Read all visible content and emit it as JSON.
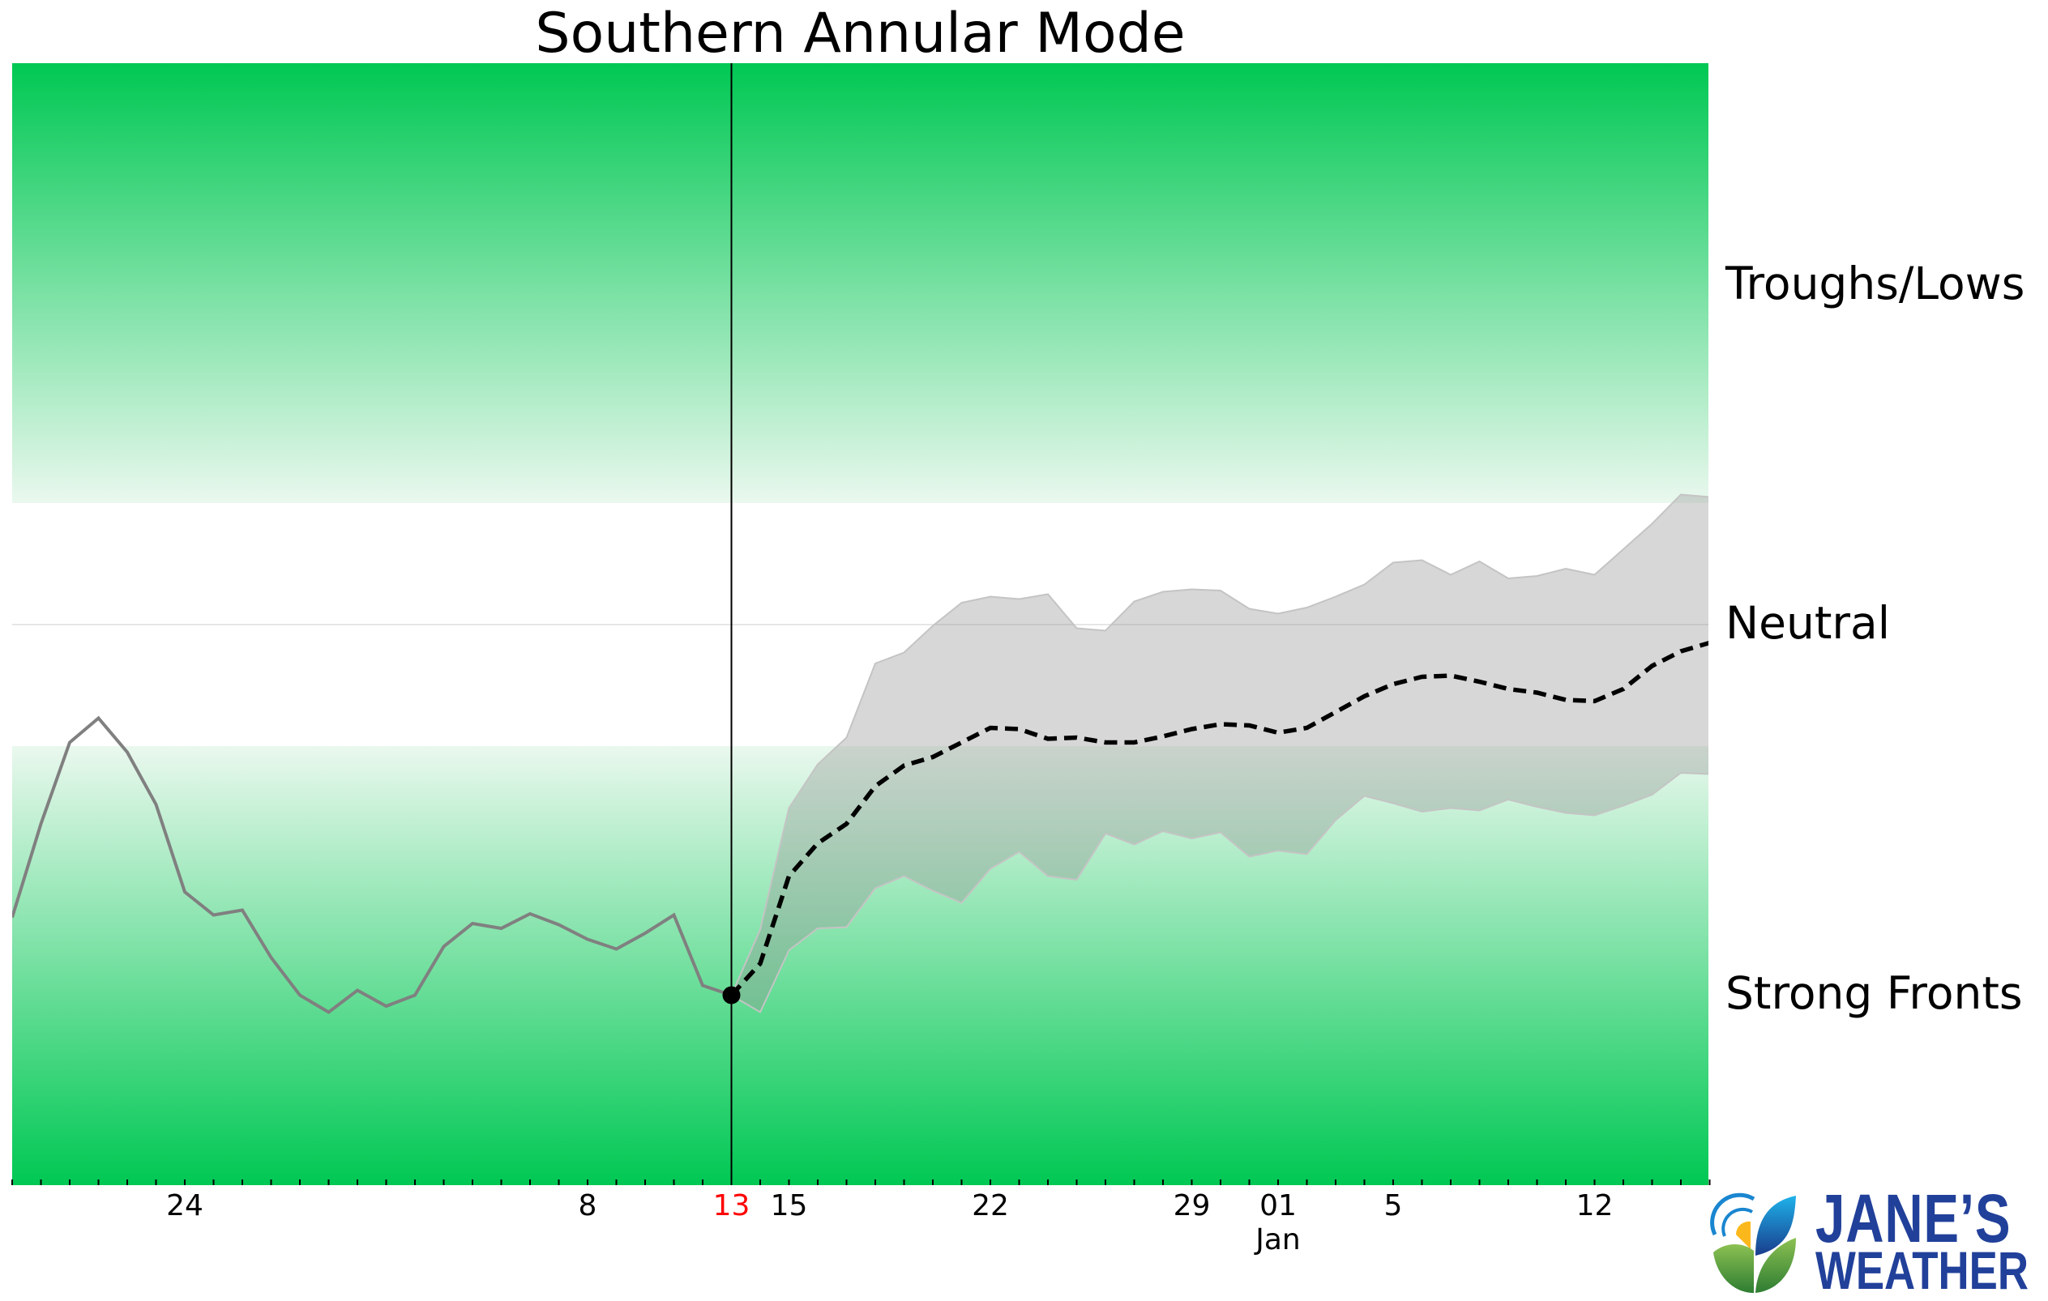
{
  "title": "Southern Annular Mode",
  "colors": {
    "green_strong": "#00c853",
    "green_pale": "#eaf8ee",
    "band_fill": "rgba(150,150,150,0.38)",
    "band_edge": "#c4c4c4",
    "history_line": "#808080",
    "forecast_line": "#000000",
    "today_marker": "#000000",
    "today_label": "#ff0000",
    "neutral_line": "#e6e6e6",
    "logo_blue": "#21409a"
  },
  "region_labels": {
    "upper": "Troughs/Lows",
    "middle": "Neutral",
    "lower": "Strong Fronts"
  },
  "logo": {
    "line1": "JANE’S",
    "line2": "WEATHER"
  },
  "x_ticks": [
    {
      "day": 6,
      "label": "24",
      "color": "#000000"
    },
    {
      "day": 20,
      "label": "8",
      "color": "#000000"
    },
    {
      "day": 25,
      "label": "13",
      "color": "#ff0000"
    },
    {
      "day": 27,
      "label": "15",
      "color": "#000000"
    },
    {
      "day": 34,
      "label": "22",
      "color": "#000000"
    },
    {
      "day": 41,
      "label": "29",
      "color": "#000000"
    },
    {
      "day": 44,
      "label": "01",
      "sublabel": "Jan",
      "color": "#000000"
    },
    {
      "day": 48,
      "label": "5",
      "color": "#000000"
    },
    {
      "day": 55,
      "label": "12",
      "color": "#000000"
    }
  ],
  "chart_data": {
    "type": "line",
    "title": "Southern Annular Mode",
    "xlabel": "",
    "ylabel": "",
    "x_axis": {
      "start": "Nov 18",
      "end": "Jan 16",
      "n_days": 60,
      "minor_tick_every_days": 1
    },
    "ylim": [
      -4.6,
      4.6
    ],
    "grid": false,
    "today_index": 25,
    "today_label": "13",
    "regions": [
      {
        "name": "Troughs/Lows",
        "from": 1.0,
        "to": 4.6,
        "style": "green gradient"
      },
      {
        "name": "Neutral",
        "from": -1.0,
        "to": 1.0,
        "style": "white",
        "center_line": 0
      },
      {
        "name": "Strong Fronts",
        "from": -4.6,
        "to": -1.0,
        "style": "green gradient"
      }
    ],
    "series": [
      {
        "name": "Observed",
        "style": "solid gray",
        "start_day": 0,
        "values": [
          -2.41,
          -1.64,
          -0.97,
          -0.77,
          -1.05,
          -1.48,
          -2.2,
          -2.39,
          -2.35,
          -2.74,
          -3.05,
          -3.19,
          -3.01,
          -3.14,
          -3.05,
          -2.65,
          -2.46,
          -2.5,
          -2.38,
          -2.47,
          -2.59,
          -2.67,
          -2.54,
          -2.39,
          -2.97,
          -3.05
        ]
      },
      {
        "name": "Forecast mean",
        "style": "dashed black",
        "start_day": 25,
        "values": [
          -3.05,
          -2.79,
          -2.07,
          -1.8,
          -1.64,
          -1.33,
          -1.16,
          -1.09,
          -0.97,
          -0.85,
          -0.86,
          -0.94,
          -0.93,
          -0.97,
          -0.97,
          -0.92,
          -0.86,
          -0.82,
          -0.83,
          -0.89,
          -0.85,
          -0.72,
          -0.59,
          -0.49,
          -0.43,
          -0.42,
          -0.47,
          -0.53,
          -0.56,
          -0.62,
          -0.63,
          -0.53,
          -0.34,
          -0.22,
          -0.15
        ]
      },
      {
        "name": "Forecast upper",
        "style": "band upper",
        "start_day": 25,
        "values": [
          -3.05,
          -2.51,
          -1.51,
          -1.15,
          -0.93,
          -0.32,
          -0.23,
          -0.01,
          0.18,
          0.23,
          0.21,
          0.25,
          -0.03,
          -0.05,
          0.19,
          0.27,
          0.29,
          0.28,
          0.13,
          0.09,
          0.14,
          0.23,
          0.33,
          0.51,
          0.53,
          0.41,
          0.52,
          0.38,
          0.4,
          0.46,
          0.41,
          0.62,
          0.83,
          1.07,
          1.05
        ]
      },
      {
        "name": "Forecast lower",
        "style": "band lower",
        "start_day": 25,
        "values": [
          -3.05,
          -3.19,
          -2.68,
          -2.5,
          -2.49,
          -2.17,
          -2.07,
          -2.19,
          -2.29,
          -2.01,
          -1.87,
          -2.07,
          -2.1,
          -1.72,
          -1.81,
          -1.7,
          -1.76,
          -1.71,
          -1.91,
          -1.86,
          -1.89,
          -1.61,
          -1.41,
          -1.47,
          -1.54,
          -1.51,
          -1.53,
          -1.44,
          -1.5,
          -1.55,
          -1.57,
          -1.49,
          -1.4,
          -1.22,
          -1.23
        ]
      }
    ]
  }
}
